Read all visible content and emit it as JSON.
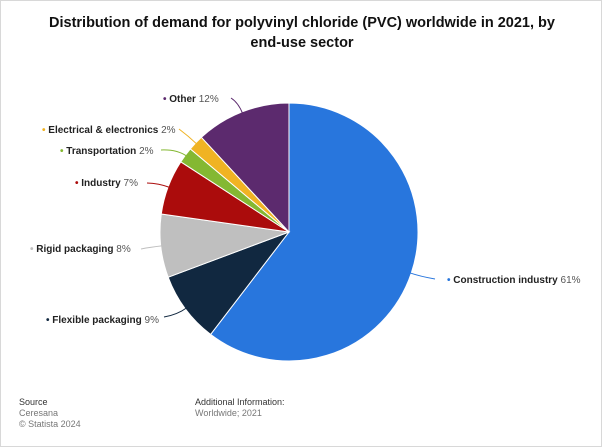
{
  "chart_data": {
    "type": "pie",
    "title": "Distribution of demand for polyvinyl chloride (PVC) worldwide in 2021, by end-use sector",
    "slices": [
      {
        "label": "Construction industry",
        "value": 61,
        "display": "61%",
        "color": "#2876dd"
      },
      {
        "label": "Flexible packaging",
        "value": 9,
        "display": "9%",
        "color": "#112840"
      },
      {
        "label": "Rigid packaging",
        "value": 8,
        "display": "8%",
        "color": "#bfbfbf"
      },
      {
        "label": "Industry",
        "value": 7,
        "display": "7%",
        "color": "#ab0c0c"
      },
      {
        "label": "Transportation",
        "value": 2,
        "display": "2%",
        "color": "#84b832"
      },
      {
        "label": "Electrical & electronics",
        "value": 2,
        "display": "2%",
        "color": "#f0b323"
      },
      {
        "label": "Other",
        "value": 12,
        "display": "12%",
        "color": "#5c2a6e"
      }
    ]
  },
  "footer": {
    "source_heading": "Source",
    "source_name": "Ceresana",
    "copyright": "© Statista 2024",
    "additional_heading": "Additional Information:",
    "additional_text": "Worldwide; 2021"
  }
}
